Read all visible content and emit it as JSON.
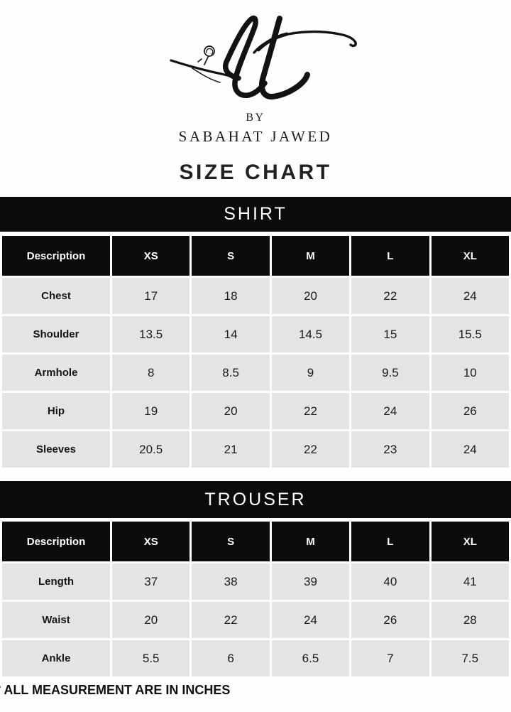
{
  "brand": {
    "monogram": "lt",
    "byline": "BY",
    "name": "SABAHAT JAWED"
  },
  "title": "SIZE CHART",
  "footer_note": "* ALL MEASUREMENT ARE IN INCHES",
  "colors": {
    "banner_bg": "#0c0c0c",
    "cell_bg": "#e4e4e4",
    "header_text": "#ffffff",
    "body_text": "#141414"
  },
  "tables": [
    {
      "title": "SHIRT",
      "columns": [
        "Description",
        "XS",
        "S",
        "M",
        "L",
        "XL"
      ],
      "rows": [
        {
          "label": "Chest",
          "values": [
            "17",
            "18",
            "20",
            "22",
            "24"
          ]
        },
        {
          "label": "Shoulder",
          "values": [
            "13.5",
            "14",
            "14.5",
            "15",
            "15.5"
          ]
        },
        {
          "label": "Armhole",
          "values": [
            "8",
            "8.5",
            "9",
            "9.5",
            "10"
          ]
        },
        {
          "label": "Hip",
          "values": [
            "19",
            "20",
            "22",
            "24",
            "26"
          ]
        },
        {
          "label": "Sleeves",
          "values": [
            "20.5",
            "21",
            "22",
            "23",
            "24"
          ]
        }
      ]
    },
    {
      "title": "TROUSER",
      "columns": [
        "Description",
        "XS",
        "S",
        "M",
        "L",
        "XL"
      ],
      "rows": [
        {
          "label": "Length",
          "values": [
            "37",
            "38",
            "39",
            "40",
            "41"
          ]
        },
        {
          "label": "Waist",
          "values": [
            "20",
            "22",
            "24",
            "26",
            "28"
          ]
        },
        {
          "label": "Ankle",
          "values": [
            "5.5",
            "6",
            "6.5",
            "7",
            "7.5"
          ]
        }
      ]
    }
  ]
}
